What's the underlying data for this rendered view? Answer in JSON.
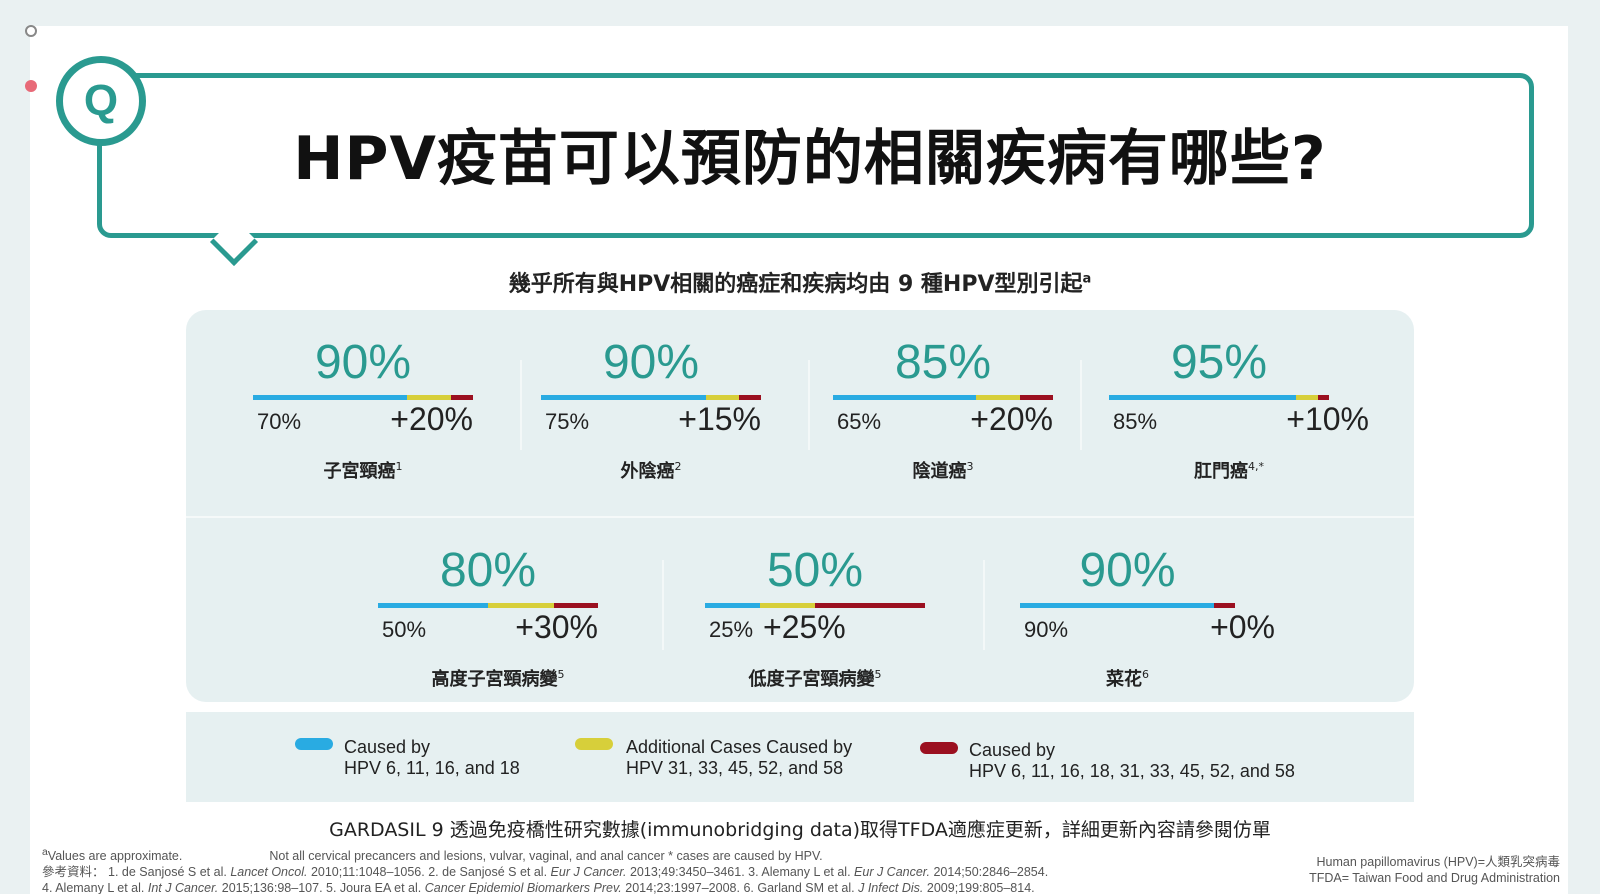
{
  "title": {
    "q_badge": "Q",
    "text": "HPV疫苗可以預防的相關疾病有哪些?"
  },
  "subtitle": {
    "text": "幾乎所有與HPV相關的癌症和疾病均由 9 種HPV型別引起",
    "sup": "a"
  },
  "stats": [
    {
      "total": "90%",
      "base": "70%",
      "added": "+20%",
      "label": "子宮頸癌",
      "ref": "1",
      "blue_pct": 70,
      "yellow_pct": 20,
      "red_pct": 10
    },
    {
      "total": "90%",
      "base": "75%",
      "added": "+15%",
      "label": "外陰癌",
      "ref": "2",
      "blue_pct": 75,
      "yellow_pct": 15,
      "red_pct": 10
    },
    {
      "total": "85%",
      "base": "65%",
      "added": "+20%",
      "label": "陰道癌",
      "ref": "3",
      "blue_pct": 65,
      "yellow_pct": 20,
      "red_pct": 15
    },
    {
      "total": "95%",
      "base": "85%",
      "added": "+10%",
      "label": "肛門癌",
      "ref": "4,*",
      "blue_pct": 85,
      "yellow_pct": 10,
      "red_pct": 5
    },
    {
      "total": "80%",
      "base": "50%",
      "added": "+30%",
      "label": "高度子宮頸病變",
      "ref": "5",
      "blue_pct": 50,
      "yellow_pct": 30,
      "red_pct": 20
    },
    {
      "total": "50%",
      "base": "25%",
      "added": "+25%",
      "label": "低度子宮頸病變",
      "ref": "5",
      "blue_pct": 25,
      "yellow_pct": 25,
      "red_pct": 50
    },
    {
      "total": "90%",
      "base": "90%",
      "added": "+0%",
      "label": "菜花",
      "ref": "6",
      "blue_pct": 90,
      "yellow_pct": 0,
      "red_pct": 10
    }
  ],
  "legend": [
    {
      "line1": "Caused by",
      "line2": "HPV 6, 11, 16, and 18",
      "color": "#29abe2"
    },
    {
      "line1": "Additional Cases Caused by",
      "line2": "HPV 31, 33, 45, 52, and 58",
      "color": "#d7cf3a"
    },
    {
      "line1": "Caused by",
      "line2": "HPV 6, 11, 16, 18, 31, 33, 45, 52, and 58",
      "color": "#9b1020"
    }
  ],
  "gardasil_note": "GARDASIL 9 透過免疫橋性研究數據(immunobridging data)取得TFDA適應症更新，詳細更新內容請參閱仿單",
  "footnotes": {
    "a_prefix": "a",
    "a_note": "Values are approximate.",
    "star_note": "Not all cervical precancers and lesions,  vulvar, vaginal, and anal cancer * cases are caused by HPV.",
    "ref_label": "參考資料：",
    "ref1": "1. de Sanjosé S et al.",
    "ref1_j": "Lancet Oncol.",
    "ref1_d": "2010;11:1048–1056.",
    "ref2": "2. de Sanjosé S et al.",
    "ref2_j": "Eur J Cancer.",
    "ref2_d": "2013;49:3450–3461.",
    "ref3": "3. Alemany L et al.",
    "ref3_j": "Eur J Cancer.",
    "ref3_d": "2014;50:2846–2854.",
    "ref4": "4. Alemany L et al.",
    "ref4_j": "Int J Cancer.",
    "ref4_d": "2015;136:98–107.",
    "ref5": "5. Joura EA et al.",
    "ref5_j": "Cancer Epidemiol Biomarkers Prev.",
    "ref5_d": "2014;23:1997–2008.",
    "ref6": "6. Garland SM et al.",
    "ref6_j": "J Infect Dis.",
    "ref6_d": "2009;199:805–814."
  },
  "abbreviations": {
    "hpv": "Human papillomavirus (HPV)=人類乳突病毒",
    "tfda": "TFDA= Taiwan Food and Drug Administration"
  }
}
